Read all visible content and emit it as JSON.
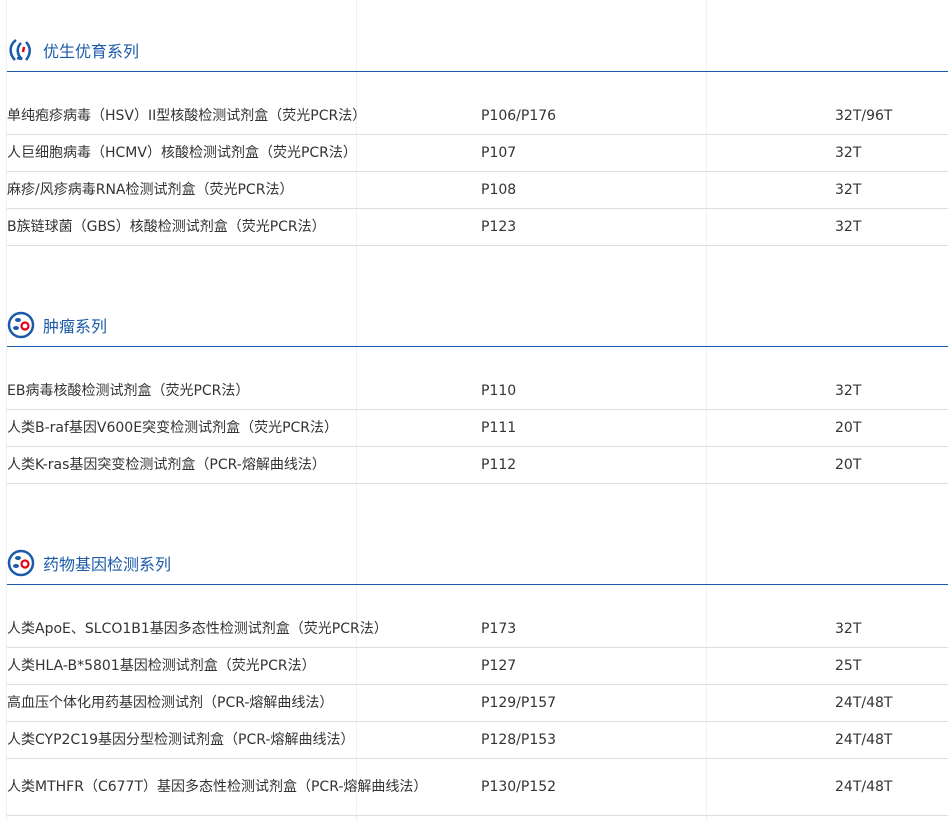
{
  "sections": [
    {
      "title": "优生优育系列",
      "icon": "fertility-icon",
      "rows": [
        {
          "name": "单纯疱疹病毒（HSV）II型核酸检测试剂盒（荧光PCR法）",
          "code": "P106/P176",
          "spec": "32T/96T"
        },
        {
          "name": "人巨细胞病毒（HCMV）核酸检测试剂盒（荧光PCR法）",
          "code": "P107",
          "spec": "32T"
        },
        {
          "name": "麻疹/风疹病毒RNA检测试剂盒（荧光PCR法）",
          "code": "P108",
          "spec": "32T"
        },
        {
          "name": "B族链球菌（GBS）核酸检测试剂盒（荧光PCR法）",
          "code": "P123",
          "spec": "32T"
        }
      ]
    },
    {
      "title": "肿瘤系列",
      "icon": "cell-icon",
      "rows": [
        {
          "name": "EB病毒核酸检测试剂盒（荧光PCR法）",
          "code": "P110",
          "spec": "32T"
        },
        {
          "name": "人类B-raf基因V600E突变检测试剂盒（荧光PCR法）",
          "code": "P111",
          "spec": "20T"
        },
        {
          "name": "人类K-ras基因突变检测试剂盒（PCR-熔解曲线法）",
          "code": "P112",
          "spec": "20T"
        }
      ]
    },
    {
      "title": "药物基因检测系列",
      "icon": "cell-icon",
      "rows": [
        {
          "name": "人类ApoE、SLCO1B1基因多态性检测试剂盒（荧光PCR法）",
          "code": "P173",
          "spec": "32T"
        },
        {
          "name": "人类HLA-B*5801基因检测试剂盒（荧光PCR法）",
          "code": "P127",
          "spec": "25T"
        },
        {
          "name": "高血压个体化用药基因检测试剂（PCR-熔解曲线法）",
          "code": "P129/P157",
          "spec": "24T/48T"
        },
        {
          "name": "人类CYP2C19基因分型检测试剂盒（PCR-熔解曲线法）",
          "code": "P128/P153",
          "spec": "24T/48T"
        },
        {
          "name": "人类MTHFR（C677T）基因多态性检测试剂盒（PCR-熔解曲线法）",
          "code": "P130/P152",
          "spec": "24T/48T"
        }
      ]
    }
  ],
  "colors": {
    "accent": "#1a5aa8",
    "icon_red": "#e60012"
  }
}
